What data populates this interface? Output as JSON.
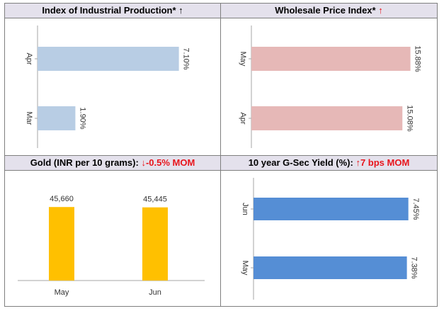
{
  "panels": {
    "iip": {
      "title": "Index of Industrial Production*",
      "arrow": "↑"
    },
    "wpi": {
      "title": "Wholesale Price Index*",
      "arrow": "↑"
    },
    "gold": {
      "title": "Gold (INR per 10 grams):",
      "arrow": "↓",
      "change": "-0.5% MOM"
    },
    "gsec": {
      "title": "10 year G-Sec Yield (%):",
      "arrow": "↑",
      "change": "7 bps MOM"
    }
  },
  "colors": {
    "iip_bar": "#b8cde4",
    "wpi_bar": "#e6b8b7",
    "gold_bar": "#ffc000",
    "gsec_bar": "#558ed5",
    "up_red": "#e8141c"
  },
  "chart_data": [
    {
      "type": "bar",
      "orientation": "horizontal",
      "categories": [
        "Apr",
        "Mar"
      ],
      "values": [
        7.1,
        1.9
      ],
      "labels": [
        "7.10%",
        "1.90%"
      ],
      "xlim": [
        0,
        8.5
      ]
    },
    {
      "type": "bar",
      "orientation": "horizontal",
      "categories": [
        "May",
        "Apr"
      ],
      "values": [
        15.88,
        15.08
      ],
      "labels": [
        "15.88%",
        "15.08%"
      ],
      "xlim": [
        0,
        16.9
      ]
    },
    {
      "type": "bar",
      "orientation": "vertical",
      "categories": [
        "May",
        "Jun"
      ],
      "values": [
        45660,
        45445
      ],
      "labels": [
        "45,660",
        "45,445"
      ],
      "ylim": [
        0,
        55000
      ]
    },
    {
      "type": "bar",
      "orientation": "horizontal",
      "categories": [
        "Jun",
        "May"
      ],
      "values": [
        7.45,
        7.38
      ],
      "labels": [
        "7.45%",
        "7.38%"
      ],
      "xlim": [
        0,
        7.7
      ]
    }
  ]
}
